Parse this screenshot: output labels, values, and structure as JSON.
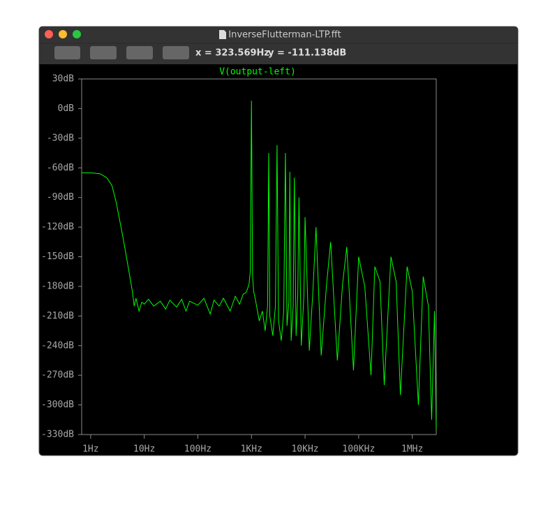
{
  "window": {
    "title": "InverseFlutterman-LTP.fft",
    "readout_x": "x = 323.569Hz",
    "readout_y": "y = -111.138dB"
  },
  "chart_data": {
    "type": "line",
    "title": "V(output-left)",
    "color": "#00ff00",
    "xscale": "log",
    "xlim": [
      0.68,
      2800000
    ],
    "ylim": [
      -330,
      30
    ],
    "xticks": [
      {
        "value": 1,
        "label": "1Hz"
      },
      {
        "value": 10,
        "label": "10Hz"
      },
      {
        "value": 100,
        "label": "100Hz"
      },
      {
        "value": 1000,
        "label": "1KHz"
      },
      {
        "value": 10000,
        "label": "10KHz"
      },
      {
        "value": 100000,
        "label": "100KHz"
      },
      {
        "value": 1000000,
        "label": "1MHz"
      }
    ],
    "yticks": [
      {
        "value": 30,
        "label": "30dB"
      },
      {
        "value": 0,
        "label": "0dB"
      },
      {
        "value": -30,
        "label": "-30dB"
      },
      {
        "value": -60,
        "label": "-60dB"
      },
      {
        "value": -90,
        "label": "-90dB"
      },
      {
        "value": -120,
        "label": "-120dB"
      },
      {
        "value": -150,
        "label": "-150dB"
      },
      {
        "value": -180,
        "label": "-180dB"
      },
      {
        "value": -210,
        "label": "-210dB"
      },
      {
        "value": -240,
        "label": "-240dB"
      },
      {
        "value": -270,
        "label": "-270dB"
      },
      {
        "value": -300,
        "label": "-300dB"
      },
      {
        "value": -330,
        "label": "-330dB"
      }
    ],
    "x": [
      0.68,
      1,
      1.5,
      2,
      2.5,
      3,
      4,
      5,
      6,
      6.5,
      7,
      8,
      9,
      10,
      12,
      15,
      20,
      25,
      30,
      40,
      50,
      60,
      70,
      100,
      130,
      170,
      200,
      250,
      300,
      400,
      500,
      600,
      700,
      800,
      900,
      950,
      1000,
      1050,
      1100,
      1200,
      1400,
      1600,
      1800,
      2000,
      2100,
      2200,
      2500,
      2800,
      3000,
      3200,
      3600,
      4000,
      4300,
      4600,
      5000,
      5200,
      5500,
      6000,
      6300,
      6800,
      7300,
      7700,
      8500,
      9500,
      10000,
      12000,
      14000,
      16000,
      20000,
      25000,
      30000,
      40000,
      50000,
      60000,
      80000,
      100000,
      130000,
      170000,
      200000,
      250000,
      300000,
      400000,
      500000,
      600000,
      800000,
      1000000,
      1300000,
      1600000,
      2000000,
      2300000,
      2600000,
      2800000
    ],
    "values": [
      -65,
      -65,
      -66,
      -70,
      -78,
      -95,
      -130,
      -160,
      -185,
      -200,
      -192,
      -205,
      -196,
      -198,
      -193,
      -200,
      -195,
      -203,
      -194,
      -201,
      -193,
      -205,
      -195,
      -199,
      -192,
      -208,
      -194,
      -200,
      -192,
      -205,
      -190,
      -198,
      -188,
      -186,
      -178,
      -165,
      8,
      -170,
      -185,
      -195,
      -215,
      -205,
      -225,
      -200,
      -45,
      -210,
      -230,
      -200,
      -37,
      -215,
      -235,
      -205,
      -45,
      -220,
      -195,
      -64,
      -235,
      -200,
      -70,
      -230,
      -190,
      -90,
      -240,
      -190,
      -110,
      -245,
      -185,
      -120,
      -250,
      -180,
      -135,
      -255,
      -178,
      -140,
      -265,
      -150,
      -180,
      -270,
      -160,
      -175,
      -280,
      -150,
      -175,
      -290,
      -160,
      -185,
      -300,
      -170,
      -200,
      -315,
      -205,
      -325
    ]
  }
}
